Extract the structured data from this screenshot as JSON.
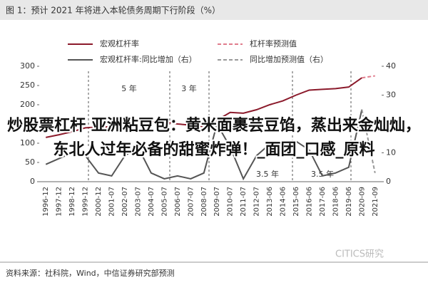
{
  "chart_data": {
    "type": "line",
    "title": "图 1：预计 2021 年将进入本轮债务周期下行阶段（%）",
    "source": "资料来源：社科院，Wind，中信证券研究部预测",
    "watermark": "CITICS研究",
    "overlay_text": "炒股票杠杆 亚洲粘豆包：黄米面裹芸豆馅，蒸出来金灿灿，东北人过年必备的甜蜜炸弹！_面团_口感_原料",
    "annotations": [
      "5 年",
      "3 年",
      "3.5 年",
      "3.5 年"
    ],
    "categories": [
      "1996-12",
      "1997-12",
      "1998-12",
      "1999-12",
      "2000-12",
      "2001-07",
      "2002-07",
      "2003-07",
      "2004-07",
      "2005-07",
      "2006-07",
      "2007-07",
      "2008-07",
      "2009-07",
      "2010-07",
      "2011-07",
      "2012-07",
      "2013-06",
      "2014-06",
      "2015-06",
      "2016-06",
      "2017-06",
      "2018-06",
      "2019-06",
      "2020-09",
      "2021-09"
    ],
    "series": [
      {
        "name": "宏观杠杆率",
        "color": "#8b1a2b",
        "dash": false,
        "axis": "y",
        "values": [
          115,
          122,
          130,
          140,
          142,
          143,
          150,
          160,
          158,
          155,
          150,
          147,
          143,
          160,
          180,
          178,
          187,
          200,
          210,
          225,
          238,
          240,
          242,
          246,
          270,
          null
        ]
      },
      {
        "name": "杠杆率预测值",
        "color": "#e07c8c",
        "dash": true,
        "axis": "y",
        "values": [
          null,
          null,
          null,
          null,
          null,
          null,
          null,
          null,
          null,
          null,
          null,
          null,
          null,
          null,
          null,
          null,
          null,
          null,
          null,
          null,
          null,
          null,
          null,
          null,
          270,
          275
        ]
      },
      {
        "name": "宏观杠杆率:同比增加（右）",
        "color": "#555555",
        "dash": false,
        "axis": "y2",
        "values": [
          6,
          8,
          10,
          9,
          3,
          2,
          9,
          12,
          3,
          1,
          2,
          1,
          3,
          20,
          12,
          1,
          9,
          13,
          9,
          14,
          11,
          2,
          3,
          5,
          25,
          null
        ]
      },
      {
        "name": "同比增加预测值（右）",
        "color": "#999999",
        "dash": true,
        "axis": "y2",
        "values": [
          null,
          null,
          null,
          null,
          null,
          null,
          null,
          null,
          null,
          null,
          null,
          null,
          null,
          null,
          null,
          null,
          null,
          null,
          null,
          null,
          null,
          null,
          null,
          null,
          25,
          3
        ]
      }
    ],
    "ylim": [
      0,
      300
    ],
    "yticks": [
      0,
      50,
      100,
      150,
      200,
      250,
      300
    ],
    "y2lim": [
      0,
      40
    ],
    "y2ticks": [
      0,
      10,
      20,
      30,
      40
    ]
  }
}
